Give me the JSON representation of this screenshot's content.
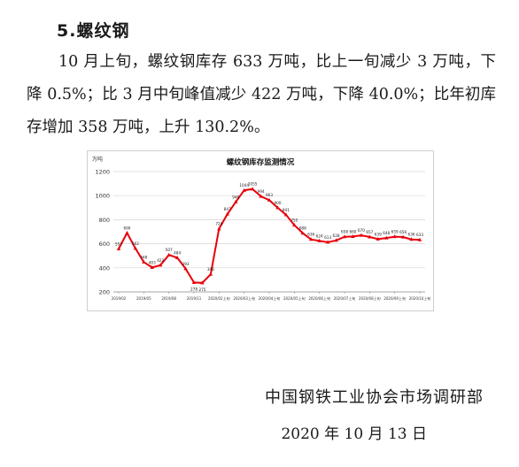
{
  "doc": {
    "section_heading": "5.螺纹钢",
    "paragraph": "10 月上旬，螺纹钢库存 633 万吨，比上一旬减少 3 万吨，下降 0.5%；比 3 月中旬峰值减少 422 万吨，下降 40.0%；比年初库存增加 358 万吨，上升 130.2%。",
    "organization": "中国钢铁工业协会市场调研部",
    "date": "2020 年 10 月 13 日"
  },
  "chart_data": {
    "type": "line",
    "title": "螺纹钢库存监测情况",
    "ylabel": "万吨",
    "xlabel": "",
    "ylim": [
      200,
      1200
    ],
    "yticks": [
      200,
      400,
      600,
      800,
      1000,
      1200
    ],
    "xtick_labels": [
      "2019/02",
      "2019/05",
      "2019/08",
      "2019/11",
      "2020/02上旬",
      "2020/03上旬",
      "2020/04上旬",
      "2020/05上旬",
      "2020/06上旬",
      "2020/07上旬",
      "2020/08上旬",
      "2020/09上旬",
      "2020/10上旬"
    ],
    "xtick_indices": [
      0,
      3,
      6,
      9,
      12,
      15,
      18,
      21,
      24,
      27,
      30,
      33,
      36
    ],
    "grid": "horizontal",
    "color": "#e8000b",
    "values": [
      557,
      690,
      562,
      448,
      403,
      422,
      507,
      484,
      393,
      278,
      275,
      346,
      724,
      847,
      948,
      1044,
      1055,
      994,
      963,
      900,
      841,
      755,
      688,
      636,
      624,
      613,
      628,
      658,
      660,
      670,
      657,
      639,
      648,
      659,
      656,
      636,
      633
    ],
    "labels": [
      "557",
      "690",
      "562",
      "448",
      "403",
      "422",
      "507",
      "484",
      "393",
      "278",
      "275",
      "346",
      "724",
      "847",
      "948",
      "1044",
      "1055",
      "994",
      "963",
      "900",
      "841",
      "755",
      "688",
      "636",
      "624",
      "613",
      "628",
      "658",
      "660",
      "670",
      "657",
      "639",
      "648",
      "659",
      "656",
      "636",
      "633"
    ]
  }
}
